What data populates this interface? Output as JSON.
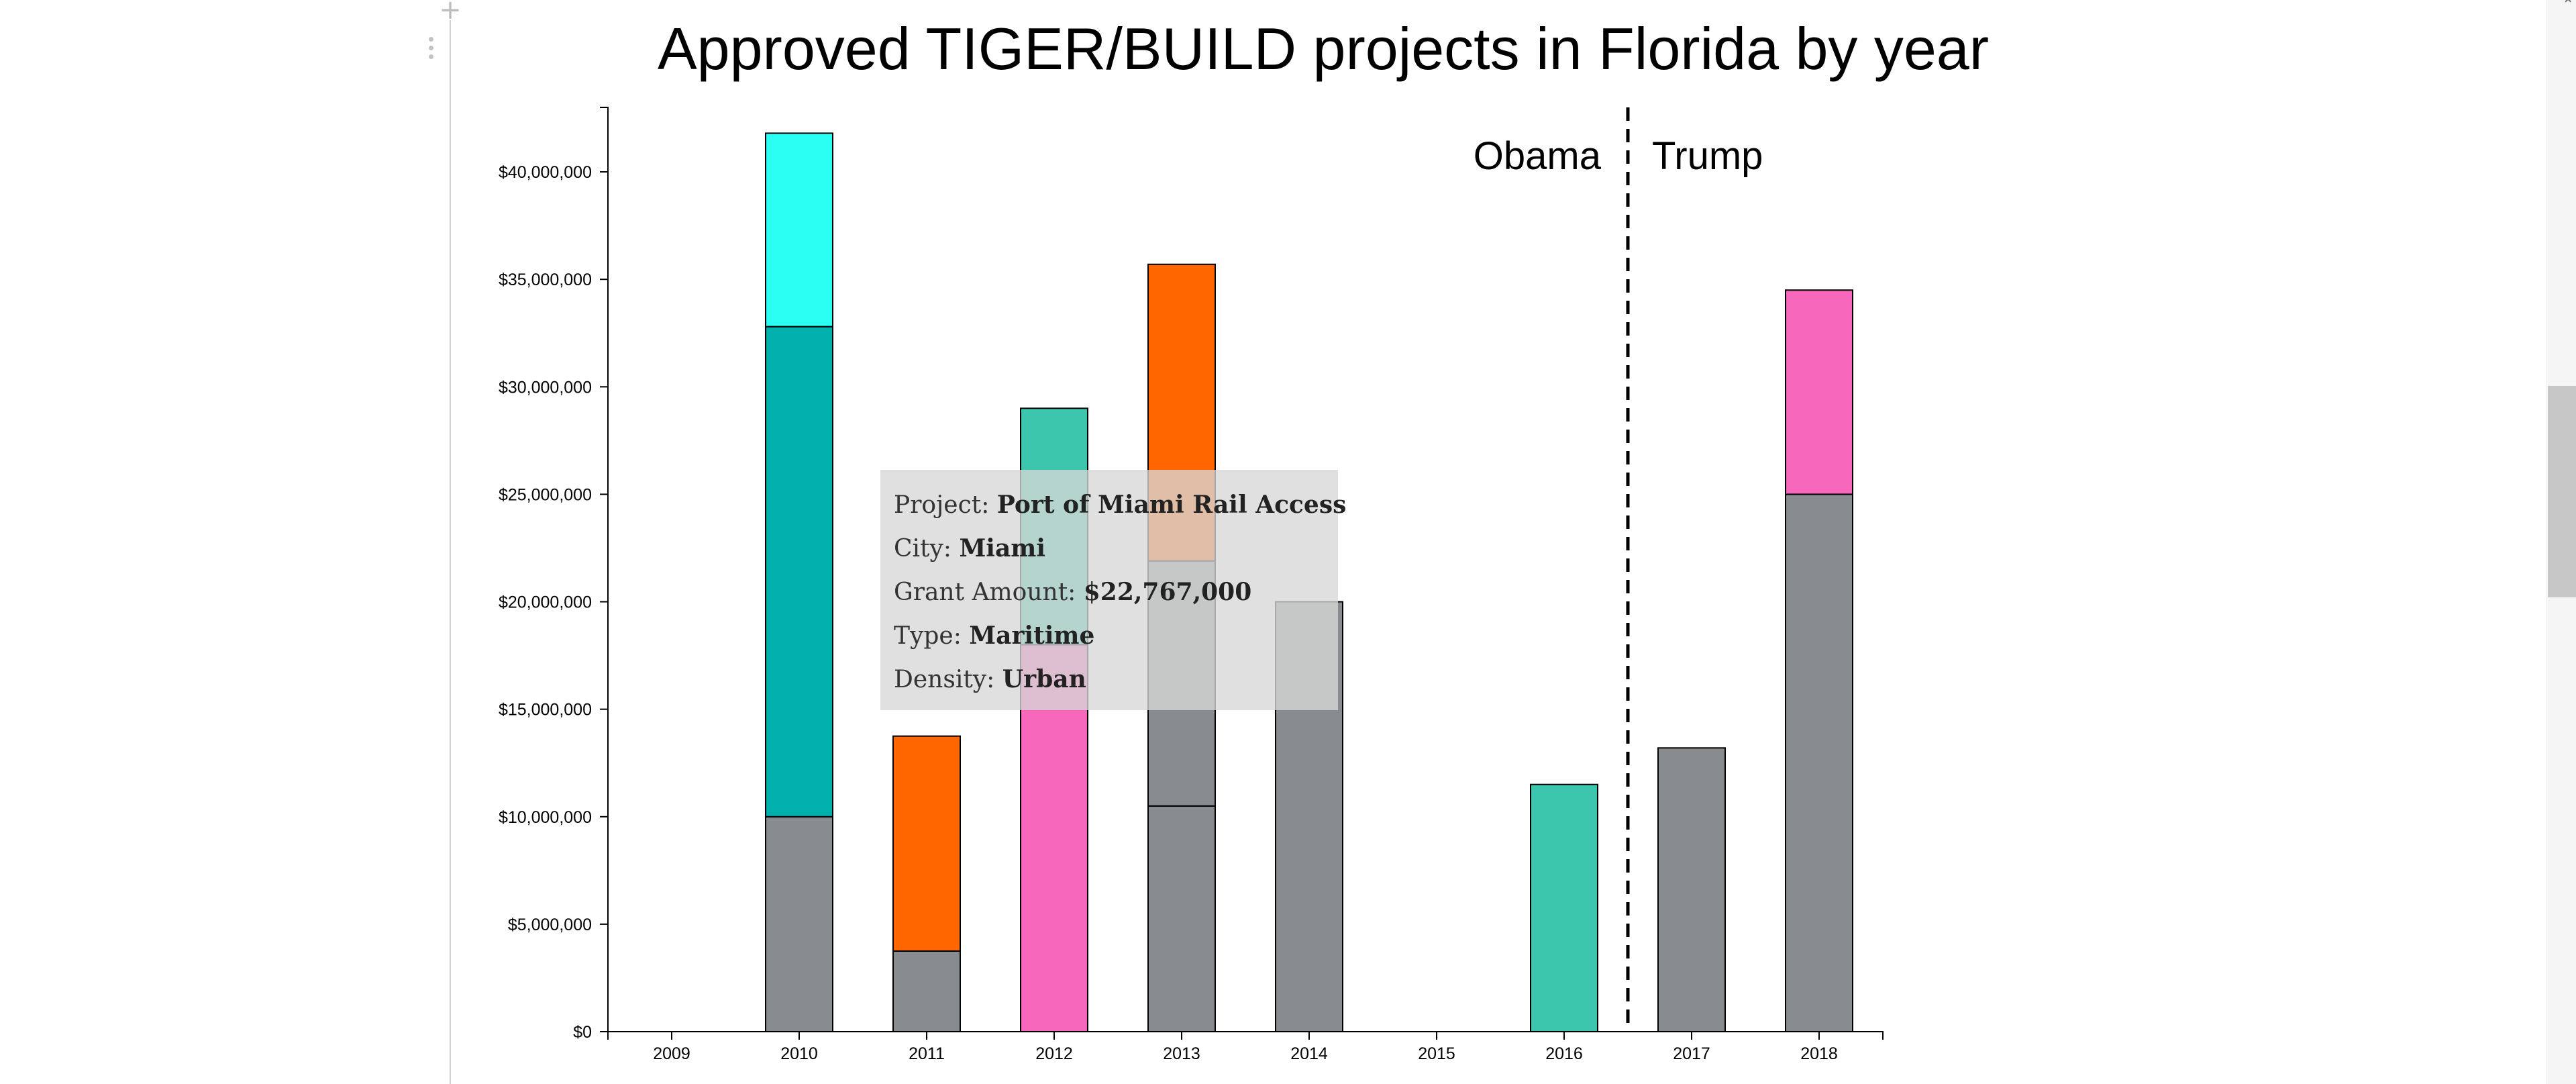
{
  "chart_data": {
    "type": "bar",
    "stacked": true,
    "title": "Approved TIGER/BUILD projects in Florida by year",
    "categories": [
      "2009",
      "2010",
      "2011",
      "2012",
      "2013",
      "2014",
      "2015",
      "2016",
      "2017",
      "2018"
    ],
    "y_ticks": [
      "$0",
      "$5,000,000",
      "$10,000,000",
      "$15,000,000",
      "$20,000,000",
      "$25,000,000",
      "$30,000,000",
      "$35,000,000",
      "$40,000,000"
    ],
    "ylim": [
      0,
      43000000
    ],
    "grid": false,
    "segments": [
      {
        "year": "2010",
        "values": [
          10000000,
          22800000,
          9000000
        ],
        "colors": [
          "#898c8e",
          "#00b1ad",
          "#2bfef2"
        ]
      },
      {
        "year": "2011",
        "values": [
          3750000,
          10000000
        ],
        "colors": [
          "#898c8e",
          "#ff6600"
        ]
      },
      {
        "year": "2012",
        "values": [
          18000000,
          11000000
        ],
        "colors": [
          "#f767bb",
          "#3cc6ad"
        ]
      },
      {
        "year": "2013",
        "values": [
          10500000,
          11400000,
          13800000
        ],
        "colors": [
          "#898c8e",
          "#898c8e",
          "#ff6600"
        ]
      },
      {
        "year": "2014",
        "values": [
          20000000
        ],
        "colors": [
          "#898c8e"
        ]
      },
      {
        "year": "2016",
        "values": [
          11500000
        ],
        "colors": [
          "#3cc6ad"
        ]
      },
      {
        "year": "2017",
        "values": [
          13200000
        ],
        "colors": [
          "#898c8e"
        ]
      },
      {
        "year": "2018",
        "values": [
          25000000,
          9500000
        ],
        "colors": [
          "#898c8e",
          "#f767bb"
        ]
      }
    ],
    "divider": {
      "between": [
        "2016",
        "2017"
      ],
      "left_label": "Obama",
      "right_label": "Trump"
    }
  },
  "tooltip": {
    "project_label": "Project: ",
    "project_value": "Port of Miami Rail Access",
    "city_label": "City: ",
    "city_value": "Miami",
    "amount_label": "Grant Amount: ",
    "amount_value": "$22,767,000",
    "type_label": "Type: ",
    "type_value": "Maritime",
    "density_label": "Density: ",
    "density_value": "Urban"
  },
  "ui": {
    "plus_icon": "plus-icon",
    "drag_icon": "drag-handle-dots-icon"
  }
}
